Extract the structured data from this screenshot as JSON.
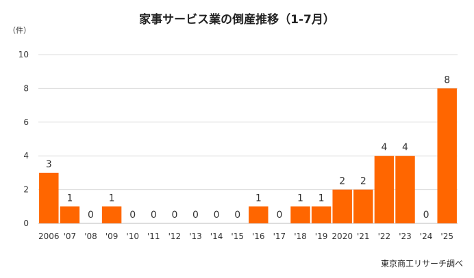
{
  "chart_data": {
    "type": "bar",
    "title": "家事サービス業の倒産推移（1-7月）",
    "unit_label": "（件）",
    "source": "東京商工リサーチ調べ",
    "categories": [
      "2006",
      "'07",
      "'08",
      "'09",
      "'10",
      "'11",
      "'12",
      "'13",
      "'14",
      "'15",
      "'16",
      "'17",
      "'18",
      "'19",
      "2020",
      "'21",
      "'22",
      "'23",
      "'24",
      "'25"
    ],
    "values": [
      3,
      1,
      0,
      1,
      0,
      0,
      0,
      0,
      0,
      0,
      1,
      0,
      1,
      1,
      2,
      2,
      4,
      4,
      0,
      8
    ],
    "data_labels": [
      "3",
      "1",
      "0",
      "1",
      "0",
      "0",
      "0",
      "0",
      "0",
      "0",
      "1",
      "0",
      "1",
      "1",
      "2",
      "2",
      "4",
      "4",
      "0",
      "8"
    ],
    "ylim": [
      0,
      10
    ],
    "yticks": [
      0,
      2,
      4,
      6,
      8,
      10
    ],
    "grid": true,
    "bar_color": "#ff6600",
    "grid_color": "#dcdcdc"
  }
}
